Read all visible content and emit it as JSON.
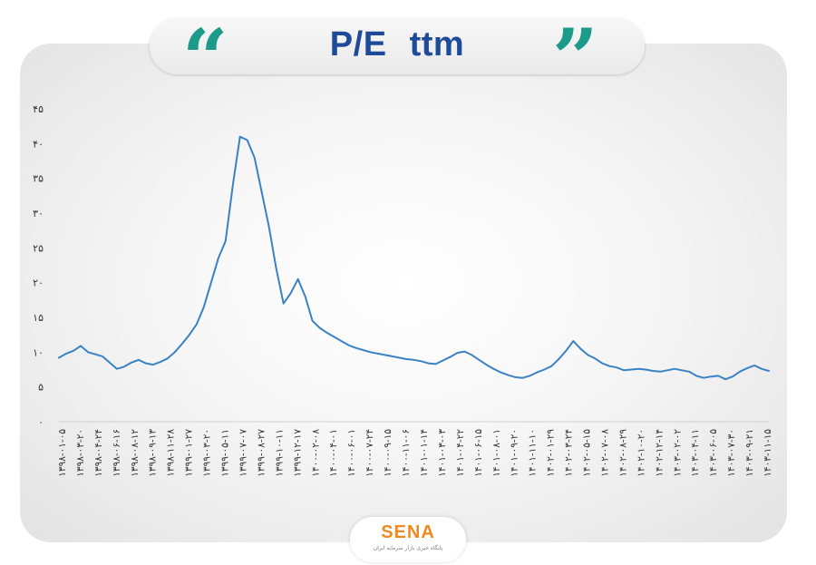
{
  "header": {
    "title": "P/E  ttm",
    "open_quote": "“",
    "close_quote": "”",
    "quote_color": "#1c9a8a",
    "title_color": "#1e4a9a"
  },
  "logo": {
    "text": "SENA",
    "subtitle": "پایگاه خبری بازار سرمایه ایران",
    "color": "#f08a1f"
  },
  "chart_data": {
    "type": "line",
    "title": "P/E  ttm",
    "xlabel": "",
    "ylabel": "",
    "ylim": [
      0,
      45
    ],
    "yticks": [
      "۰",
      "۵",
      "۱۰",
      "۱۵",
      "۲۰",
      "۲۵",
      "۳۰",
      "۳۵",
      "۴۰",
      "۴۵"
    ],
    "grid": false,
    "legend": "none",
    "line_color": "#3a82c4",
    "x_tick_labels": [
      "۱۳۹۸-۰۱-۰۵",
      "۱۳۹۸-۰۳-۲۰",
      "۱۳۹۸-۰۴-۲۴",
      "۱۳۹۸-۰۶-۱۶",
      "۱۳۹۸-۰۸-۱۲",
      "۱۳۹۸-۰۹-۱۳",
      "۱۳۹۸-۱۱-۲۸",
      "۱۳۹۹-۰۱-۲۷",
      "۱۳۹۹-۰۳-۲۰",
      "۱۳۹۹-۰۵-۱۱",
      "۱۳۹۹-۰۷-۰۷",
      "۱۳۹۹-۰۸-۲۷",
      "۱۳۹۹-۱۰-۱۱",
      "۱۳۹۹-۱۲-۱۷",
      "۱۴۰۰-۰۲-۰۸",
      "۱۴۰۰-۰۴-۰۱",
      "۱۴۰۰-۰۶-۰۱",
      "۱۴۰۰-۰۷-۲۴",
      "۱۴۰۰-۰۹-۱۵",
      "۱۴۰۰-۱۱-۰۶",
      "۱۴۰۱-۰۱-۱۴",
      "۱۴۰۱-۰۳-۰۳",
      "۱۴۰۱-۰۴-۲۲",
      "۱۴۰۱-۰۶-۱۵",
      "۱۴۰۱-۰۸-۰۱",
      "۱۴۰۱-۰۹-۲۰",
      "۱۴۰۱-۱۱-۱۰",
      "۱۴۰۲-۰۱-۲۹",
      "۱۴۰۲-۰۳-۲۴",
      "۱۴۰۲-۰۵-۱۵",
      "۱۴۰۲-۰۷-۰۸",
      "۱۴۰۲-۰۸-۲۹",
      "۱۴۰۲-۱۰-۲۰",
      "۱۴۰۲-۱۲-۱۴",
      "۱۴۰۳-۰۲-۰۲",
      "۱۴۰۳-۰۴-۱۱",
      "۱۴۰۳-۰۶-۰۵",
      "۱۴۰۳-۰۷-۳۰",
      "۱۴۰۳-۰۹-۲۱",
      "۱۴۰۳-۱۱-۱۵"
    ],
    "values": [
      9.2,
      9.8,
      10.2,
      10.9,
      10.0,
      9.7,
      9.4,
      8.5,
      7.6,
      7.9,
      8.5,
      8.9,
      8.4,
      8.2,
      8.6,
      9.1,
      10.0,
      11.2,
      12.5,
      14.0,
      16.5,
      20.0,
      23.5,
      26.0,
      34.0,
      41.0,
      40.5,
      38.0,
      33.0,
      28.0,
      22.0,
      17.0,
      18.5,
      20.5,
      18.0,
      14.5,
      13.5,
      12.8,
      12.2,
      11.6,
      11.0,
      10.6,
      10.3,
      10.0,
      9.8,
      9.6,
      9.4,
      9.2,
      9.0,
      8.9,
      8.7,
      8.4,
      8.3,
      8.8,
      9.3,
      9.9,
      10.1,
      9.6,
      8.9,
      8.2,
      7.6,
      7.1,
      6.7,
      6.4,
      6.3,
      6.6,
      7.1,
      7.5,
      8.0,
      9.0,
      10.2,
      11.6,
      10.5,
      9.6,
      9.1,
      8.4,
      8.0,
      7.8,
      7.4,
      7.5,
      7.6,
      7.5,
      7.3,
      7.2,
      7.4,
      7.6,
      7.4,
      7.2,
      6.6,
      6.3,
      6.5,
      6.6,
      6.1,
      6.5,
      7.2,
      7.7,
      8.1,
      7.6,
      7.3
    ]
  }
}
